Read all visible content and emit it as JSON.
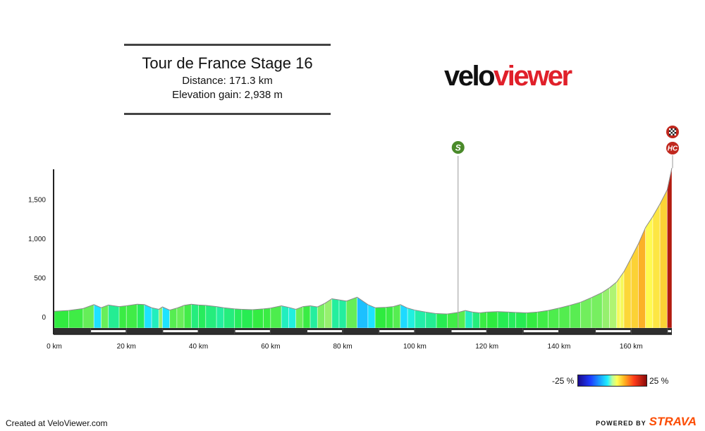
{
  "header": {
    "title": "Tour de France Stage 16",
    "distance": "Distance: 171.3 km",
    "elevation_gain": "Elevation gain: 2,938 m"
  },
  "logo": {
    "part1": "velo",
    "part2": "viewer"
  },
  "markers": {
    "sprint": "S",
    "hc": "HC",
    "finish": "finish-flag-icon"
  },
  "legend": {
    "min": "-25 %",
    "max": "25 %"
  },
  "footer": {
    "created": "Created at VeloViewer.com",
    "powered": "POWERED BY",
    "brand": "STRAVA"
  },
  "colors": {
    "brand_red": "#e0202a",
    "strava_orange": "#fc4c02",
    "sprint_green": "#4a8a2a",
    "hc_red": "#c0281e"
  },
  "chart_data": {
    "type": "area",
    "xlabel": "",
    "ylabel": "",
    "x_ticks": [
      0,
      20,
      40,
      60,
      80,
      100,
      120,
      140,
      160
    ],
    "x_tick_labels": [
      "0 km",
      "20 km",
      "40 km",
      "60 km",
      "80 km",
      "100 km",
      "120 km",
      "140 km",
      "160 km"
    ],
    "y_ticks": [
      0,
      500,
      1000,
      1500
    ],
    "y_tick_labels": [
      "0",
      "500",
      "1,000",
      "1,500"
    ],
    "xlim": [
      0,
      171.3
    ],
    "ylim": [
      -170,
      1870
    ],
    "markers": [
      {
        "type": "sprint",
        "x": 112,
        "label": "S"
      },
      {
        "type": "climb_hc",
        "x": 171.3,
        "label": "HC"
      },
      {
        "type": "finish",
        "x": 171.3
      }
    ],
    "profile": [
      [
        0,
        70
      ],
      [
        4,
        80
      ],
      [
        8,
        105
      ],
      [
        11,
        155
      ],
      [
        13,
        115
      ],
      [
        15,
        150
      ],
      [
        18,
        130
      ],
      [
        20,
        140
      ],
      [
        23,
        160
      ],
      [
        25,
        155
      ],
      [
        27,
        115
      ],
      [
        29,
        95
      ],
      [
        30,
        125
      ],
      [
        32,
        85
      ],
      [
        34,
        110
      ],
      [
        36,
        145
      ],
      [
        38,
        160
      ],
      [
        40,
        150
      ],
      [
        42,
        145
      ],
      [
        45,
        130
      ],
      [
        47,
        115
      ],
      [
        50,
        100
      ],
      [
        52,
        95
      ],
      [
        55,
        90
      ],
      [
        58,
        100
      ],
      [
        60,
        110
      ],
      [
        63,
        140
      ],
      [
        65,
        120
      ],
      [
        67,
        95
      ],
      [
        69,
        130
      ],
      [
        71,
        140
      ],
      [
        73,
        125
      ],
      [
        75,
        170
      ],
      [
        77,
        230
      ],
      [
        79,
        215
      ],
      [
        81,
        200
      ],
      [
        84,
        250
      ],
      [
        87,
        155
      ],
      [
        89,
        115
      ],
      [
        92,
        120
      ],
      [
        94,
        130
      ],
      [
        96,
        155
      ],
      [
        98,
        110
      ],
      [
        100,
        85
      ],
      [
        103,
        60
      ],
      [
        106,
        40
      ],
      [
        109,
        35
      ],
      [
        112,
        55
      ],
      [
        114,
        80
      ],
      [
        116,
        60
      ],
      [
        118,
        50
      ],
      [
        120,
        60
      ],
      [
        123,
        65
      ],
      [
        126,
        60
      ],
      [
        128,
        55
      ],
      [
        131,
        50
      ],
      [
        134,
        60
      ],
      [
        137,
        80
      ],
      [
        140,
        110
      ],
      [
        143,
        145
      ],
      [
        146,
        185
      ],
      [
        149,
        245
      ],
      [
        152,
        310
      ],
      [
        154,
        370
      ],
      [
        156,
        445
      ],
      [
        157,
        510
      ],
      [
        158,
        575
      ],
      [
        160,
        750
      ],
      [
        162,
        930
      ],
      [
        164,
        1140
      ],
      [
        166,
        1280
      ],
      [
        168,
        1440
      ],
      [
        170,
        1620
      ],
      [
        171.3,
        1900
      ]
    ]
  }
}
